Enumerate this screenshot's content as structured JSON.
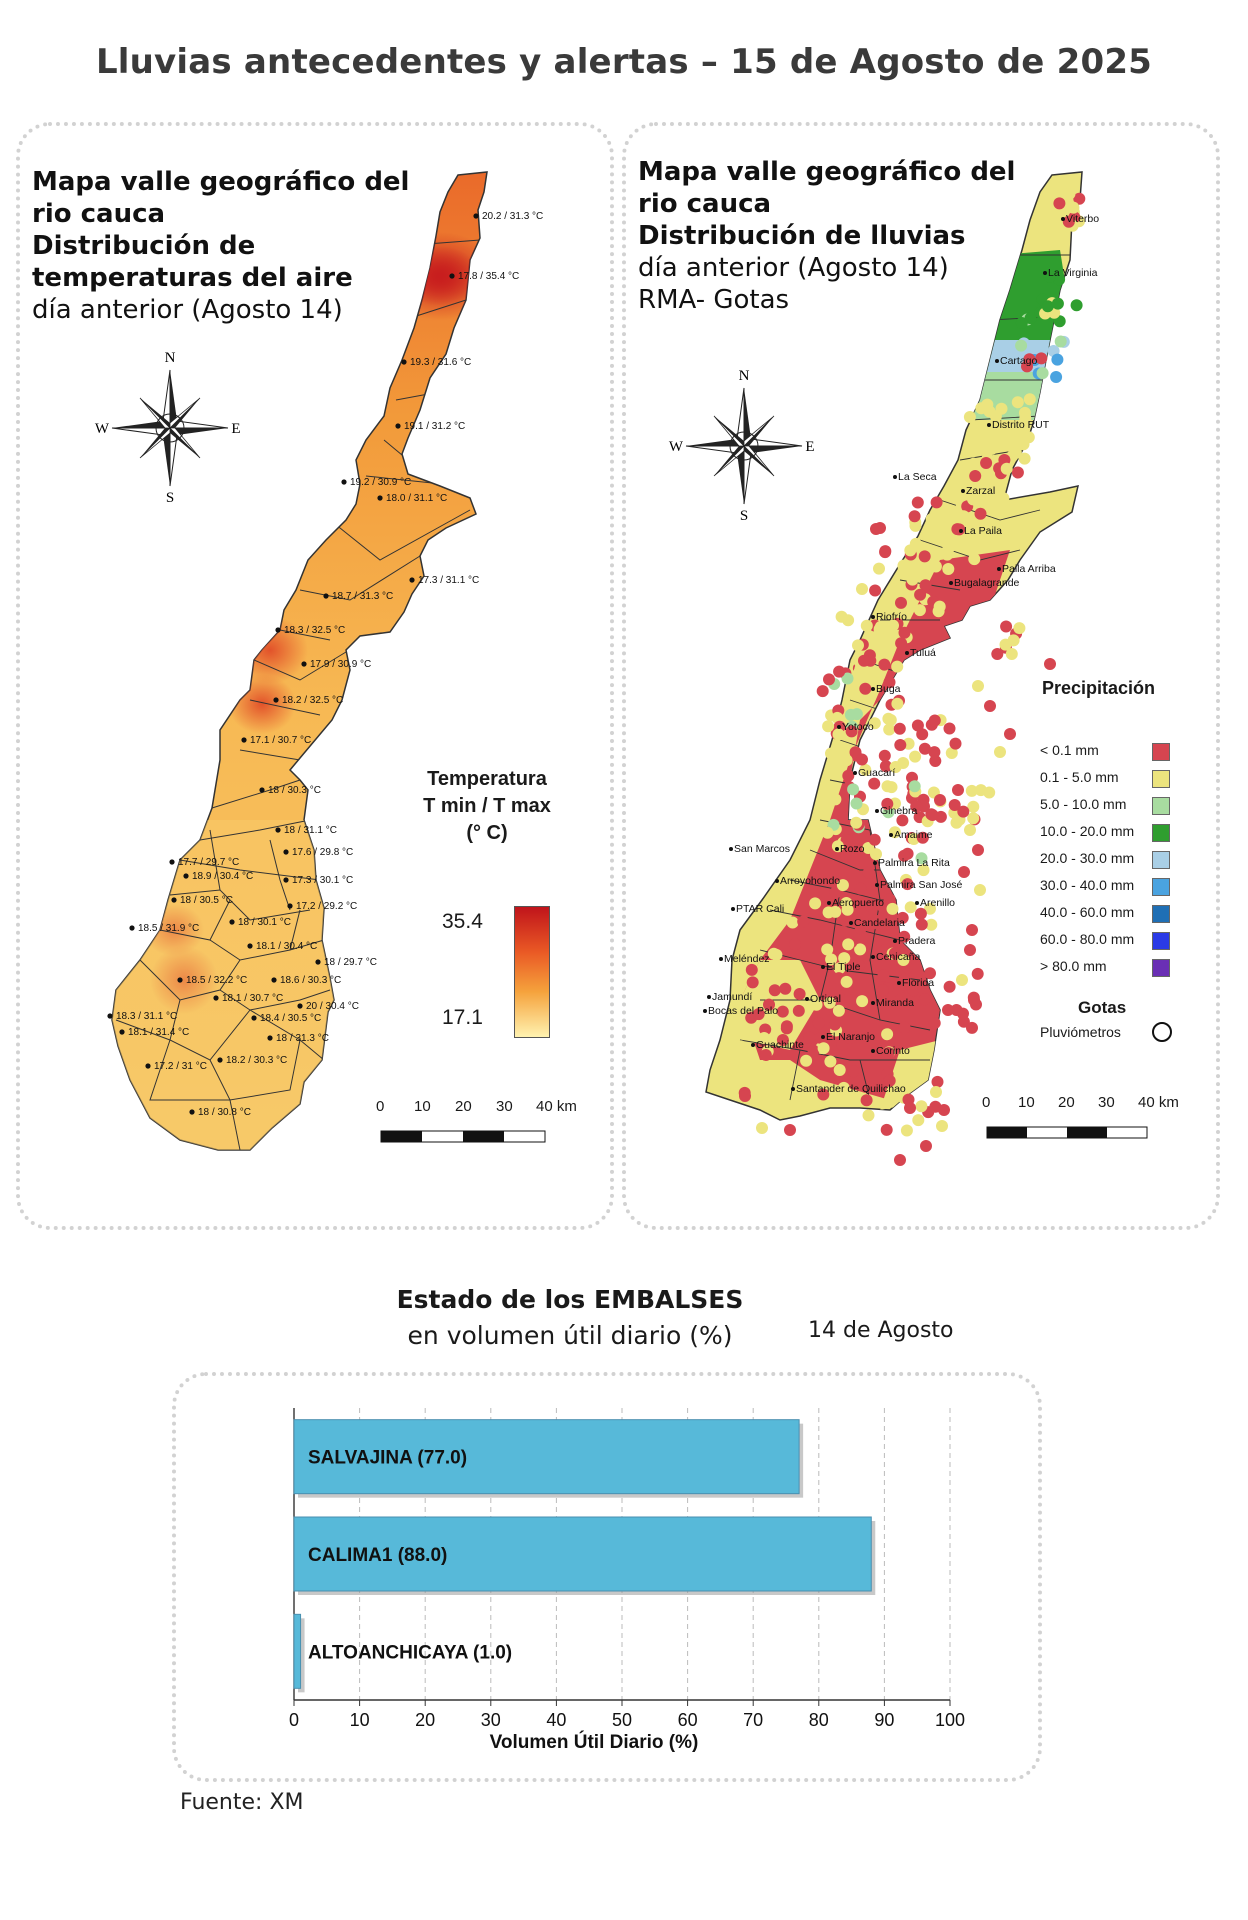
{
  "title": "Lluvias antecedentes y alertas – 15 de Agosto de 2025",
  "left_map": {
    "title_lines_bold": [
      "Mapa valle geográfico del",
      "rio cauca",
      "Distribución de",
      "temperaturas del aire"
    ],
    "title_lines_normal": [
      "día anterior (Agosto 14)"
    ],
    "compass": {
      "n": "N",
      "s": "S",
      "e": "E",
      "w": "W"
    },
    "legend": {
      "title_lines": [
        "Temperatura",
        "T min / T max",
        "(° C)"
      ],
      "max": "35.4",
      "min": "17.1"
    },
    "scale": {
      "ticks": [
        "0",
        "10",
        "20",
        "30",
        "40 km"
      ]
    },
    "station_labels": [
      "20.2 / 31.3 °C",
      "17.8 / 35.4 °C",
      "19.3 / 31.6 °C",
      "19.1 / 31.2 °C",
      "19.2 / 30.9 °C",
      "18.0 / 31.1 °C",
      "17.3 / 31.1 °C",
      "18.7 / 31.3 °C",
      "18.3 / 32.5 °C",
      "17.9 / 30.9 °C",
      "18.2 / 32.5 °C",
      "17.1 / 30.7 °C",
      "18 / 30.3 °C",
      "18 / 31.1 °C",
      "17.7 / 29.7 °C",
      "17.6 / 29.8 °C",
      "18.9 / 30.4 °C",
      "17.3 / 30.1 °C",
      "18 / 30.5 °C",
      "17.2 / 29.2 °C",
      "18.5 / 31.9 °C",
      "18 / 30.1 °C",
      "18.1 / 30.4 °C",
      "18 / 29.7 °C",
      "18.5 / 32.2 °C",
      "18.6 / 30.3 °C",
      "18.1 / 30.7 °C",
      "20 / 30.4 °C",
      "18.4 / 30.5 °C",
      "18.3 / 31.1 °C",
      "18.1 / 31.4 °C",
      "18 / 31.3 °C",
      "17.2 / 31 °C",
      "18.2 / 30.3 °C",
      "18 / 30.8 °C"
    ]
  },
  "right_map": {
    "title_lines_bold_mixed": [
      "Mapa valle geográfico del",
      "rio cauca"
    ],
    "title_bold": "Distribución de lluvias",
    "title_lines_normal": [
      "día anterior (Agosto 14)",
      "RMA- Gotas"
    ],
    "compass": {
      "n": "N",
      "s": "S",
      "e": "E",
      "w": "W"
    },
    "place_labels": [
      "Viterbo",
      "La Virginia",
      "Cartago",
      "Distrito RUT",
      "La Seca",
      "Zarzal",
      "La Paila",
      "Paila Arriba",
      "Bugalagrande",
      "Riofrío",
      "Tuluá",
      "Buga",
      "Yotoco",
      "Guacarí",
      "Ginebra",
      "Amaime",
      "San Marcos",
      "Rozo",
      "Palmira La Rita",
      "Arroyohondo",
      "Palmira San José",
      "Aeropuerto",
      "Arenillo",
      "PTAR Cali",
      "Candelaria",
      "Meléndez",
      "Cenicaña",
      "Pradera",
      "El Tiple",
      "Florida",
      "Jamundí",
      "Bocas del Palo",
      "Ortigal",
      "Miranda",
      "El Naranjo",
      "Guachinte",
      "Corinto",
      "Santander de Quilichao"
    ],
    "precip_legend": {
      "title": "Precipitación",
      "items": [
        {
          "label": "< 0.1 mm",
          "color": "#d64550"
        },
        {
          "label": "0.1 - 5.0 mm",
          "color": "#ece47e"
        },
        {
          "label": "5.0 - 10.0 mm",
          "color": "#a8dca0"
        },
        {
          "label": "10.0 - 20.0 mm",
          "color": "#2f9e2f"
        },
        {
          "label": "20.0 - 30.0 mm",
          "color": "#a9cfe6"
        },
        {
          "label": "30.0 - 40.0 mm",
          "color": "#4aa3e0"
        },
        {
          "label": "40.0 - 60.0 mm",
          "color": "#1f6fb5"
        },
        {
          "label": "60.0 - 80.0 mm",
          "color": "#2a3ae6"
        },
        {
          "label": "> 80.0 mm",
          "color": "#6a2fb5"
        }
      ]
    },
    "gotas_legend": {
      "title": "Gotas",
      "item": "Pluviómetros"
    },
    "scale": {
      "ticks": [
        "0",
        "10",
        "20",
        "30",
        "40 km"
      ]
    }
  },
  "reservoirs": {
    "title_bold": "Estado de los EMBALSES",
    "title_normal": "en volumen útil diario (%)",
    "date": "14 de Agosto",
    "source": "Fuente: XM"
  },
  "chart_data": {
    "type": "bar",
    "orientation": "horizontal",
    "categories": [
      "SALVAJINA (77.0)",
      "CALIMA1 (88.0)",
      "ALTOANCHICAYA (1.0)"
    ],
    "values": [
      77.0,
      88.0,
      1.0
    ],
    "xlabel": "Volumen Útil Diario (%)",
    "xlim": [
      0,
      100
    ],
    "xticks": [
      "0",
      "10",
      "20",
      "30",
      "40",
      "50",
      "60",
      "70",
      "80",
      "90",
      "100"
    ],
    "bar_color": "#57b9d9",
    "grid": "vertical dashed"
  }
}
